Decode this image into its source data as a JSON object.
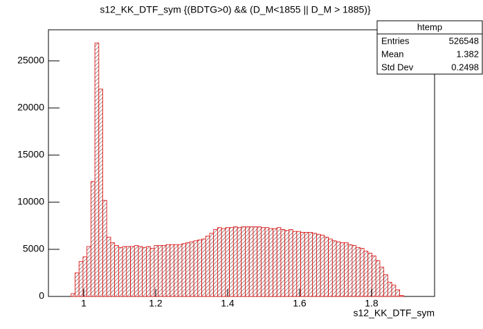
{
  "chart_data": {
    "type": "histogram",
    "title": "s12_KK_DTF_sym {(BDTG>0) && (D_M<1855 || D_M > 1885)}",
    "x_label": "s12_KK_DTF_sym",
    "bins": [
      0.965,
      0.976,
      0.987,
      0.998,
      1.009,
      1.02,
      1.031,
      1.042,
      1.053,
      1.064,
      1.075,
      1.086,
      1.097,
      1.108,
      1.119,
      1.13,
      1.141,
      1.152,
      1.163,
      1.174,
      1.185,
      1.196,
      1.207,
      1.218,
      1.229,
      1.24,
      1.251,
      1.262,
      1.273,
      1.284,
      1.295,
      1.306,
      1.317,
      1.328,
      1.339,
      1.35,
      1.361,
      1.372,
      1.383,
      1.394,
      1.405,
      1.416,
      1.427,
      1.438,
      1.449,
      1.46,
      1.471,
      1.482,
      1.493,
      1.504,
      1.515,
      1.526,
      1.537,
      1.548,
      1.559,
      1.57,
      1.581,
      1.592,
      1.603,
      1.614,
      1.625,
      1.636,
      1.647,
      1.658,
      1.669,
      1.68,
      1.691,
      1.702,
      1.713,
      1.724,
      1.735,
      1.746,
      1.757,
      1.768,
      1.779,
      1.79,
      1.801,
      1.812,
      1.823,
      1.834,
      1.845,
      1.856,
      1.867,
      1.878,
      1.889
    ],
    "values": [
      300,
      2500,
      3700,
      4200,
      5300,
      12200,
      26900,
      22000,
      10200,
      6300,
      5700,
      5400,
      5200,
      5300,
      5300,
      5300,
      5400,
      5300,
      5200,
      5300,
      5100,
      5400,
      5400,
      5400,
      5500,
      5500,
      5500,
      5500,
      5600,
      5700,
      5800,
      5900,
      6000,
      6100,
      6400,
      6700,
      7100,
      7300,
      7200,
      7300,
      7300,
      7400,
      7300,
      7400,
      7400,
      7400,
      7400,
      7400,
      7300,
      7300,
      7200,
      7200,
      7300,
      7100,
      7000,
      7100,
      6900,
      6900,
      6800,
      6800,
      6800,
      6700,
      6600,
      6500,
      6300,
      6100,
      5900,
      5800,
      5700,
      5700,
      5500,
      5400,
      5200,
      5100,
      4800,
      4600,
      4300,
      3800,
      3100,
      2300,
      1500,
      1200,
      700,
      100
    ],
    "color": "#e00000",
    "xlim": [
      0.902,
      1.975
    ],
    "xticks": [
      1,
      1.2,
      1.4,
      1.6,
      1.8
    ],
    "ylim": [
      0,
      28300
    ],
    "yticks": [
      0,
      5000,
      10000,
      15000,
      20000,
      25000
    ],
    "stats": {
      "name": "htemp",
      "rows": [
        [
          "Entries",
          526548
        ],
        [
          "Mean",
          1.382
        ],
        [
          "Std Dev",
          0.2498
        ]
      ]
    }
  }
}
